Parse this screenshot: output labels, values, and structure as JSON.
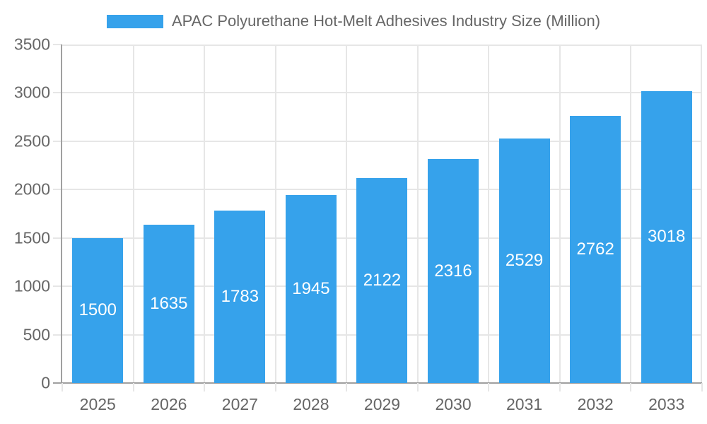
{
  "legend": {
    "label": "APAC Polyurethane Hot-Melt Adhesives Industry Size (Million)"
  },
  "chart_data": {
    "type": "bar",
    "title": "APAC Polyurethane Hot-Melt Adhesives Industry Size (Million)",
    "categories": [
      "2025",
      "2026",
      "2027",
      "2028",
      "2029",
      "2030",
      "2031",
      "2032",
      "2033"
    ],
    "values": [
      1500,
      1635,
      1783,
      1945,
      2122,
      2316,
      2529,
      2762,
      3018
    ],
    "xlabel": "",
    "ylabel": "",
    "ylim": [
      0,
      3500
    ],
    "ytick_step": 500,
    "yticks": [
      0,
      500,
      1000,
      1500,
      2000,
      2500,
      3000,
      3500
    ],
    "grid": true,
    "legend_position": "top",
    "bar_labels_position": "center",
    "colors": {
      "bar": "#36A2EB",
      "bar_label": "#FFFFFF",
      "axis_text": "#666666",
      "grid": "#E6E6E6",
      "axis_line": "#A0A0A0",
      "background": "#FFFFFF"
    }
  }
}
